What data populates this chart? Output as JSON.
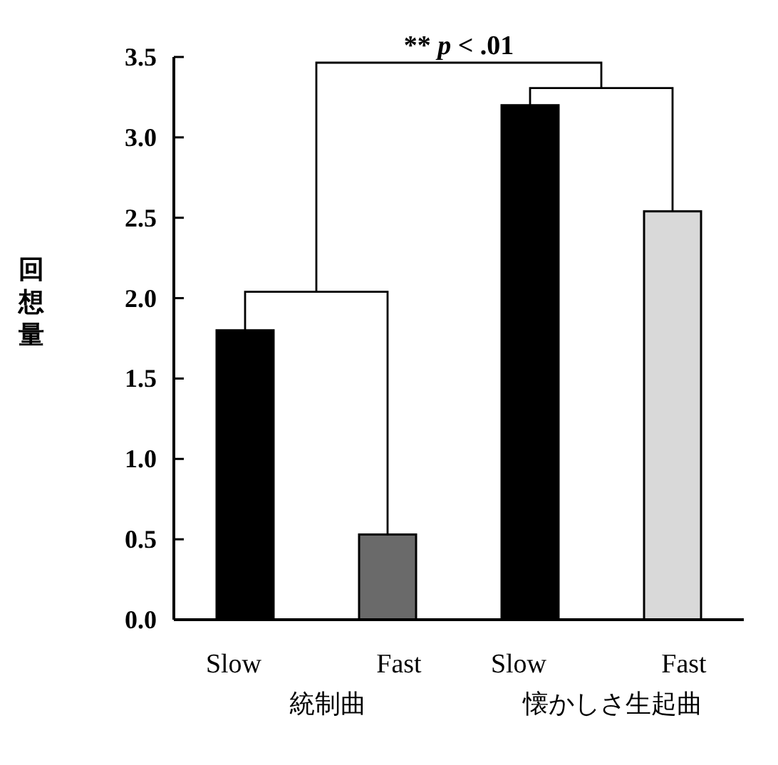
{
  "chart_data": {
    "type": "bar",
    "ylabel": "回想量",
    "categories": [
      "Slow",
      "Fast",
      "Slow",
      "Fast"
    ],
    "values": [
      1.8,
      0.53,
      3.2,
      2.54
    ],
    "colors": [
      "#000000",
      "#6a6a6a",
      "#000000",
      "#d9d9d9"
    ],
    "ylim": [
      0,
      3.5
    ],
    "yticks": [
      {
        "value": 0,
        "label": "0.0"
      },
      0.5,
      {
        "value": 1,
        "label": "1.0"
      },
      1.5,
      {
        "value": 2,
        "label": "2.0"
      },
      2.5,
      {
        "value": 3,
        "label": "3.0"
      },
      3.5
    ],
    "annotations": [
      "統制曲",
      "懐かしさ生起曲",
      "** *p* < .01"
    ]
  }
}
